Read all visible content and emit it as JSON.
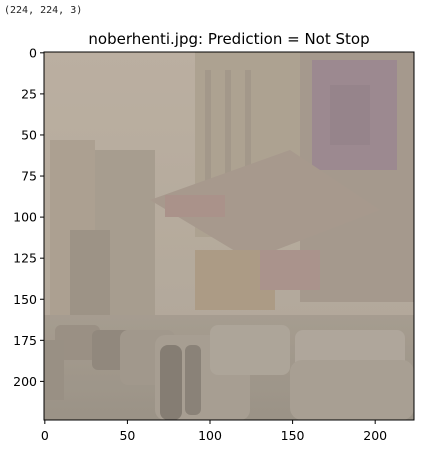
{
  "output_text": "(224, 224, 3)",
  "chart_data": {
    "type": "image",
    "title": "noberhenti.jpg: Prediction = Not Stop",
    "image_shape": [
      224,
      224,
      3
    ],
    "xlim": [
      -0.5,
      223.5
    ],
    "ylim": [
      223.5,
      -0.5
    ],
    "x_ticks": [
      0,
      50,
      100,
      150,
      200
    ],
    "y_ticks": [
      0,
      25,
      50,
      75,
      100,
      125,
      150,
      175,
      200
    ],
    "image_description": "hazy, desaturated photo of a busy city street with tall buildings, shop signs and many cars"
  }
}
